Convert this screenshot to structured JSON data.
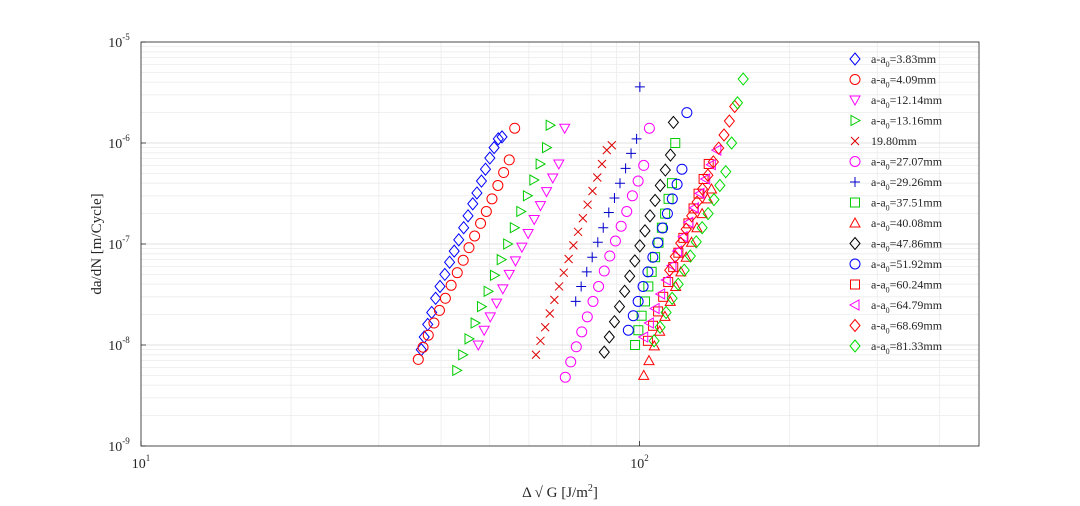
{
  "chart_data": {
    "type": "scatter",
    "title": "",
    "xlabel": {
      "prefix": "Δ √ G [J/m",
      "sup": "2",
      "suffix": "]"
    },
    "ylabel": "da/dN [m/Cycle]",
    "xscale": "log",
    "yscale": "log",
    "xlim": [
      10,
      480
    ],
    "ylim": [
      1e-09,
      1e-05
    ],
    "grid": true,
    "legend_position": "top-right",
    "x_ticks": [
      {
        "base": "10",
        "exp": "1",
        "value": 10
      },
      {
        "base": "10",
        "exp": "2",
        "value": 100
      }
    ],
    "y_ticks": [
      {
        "base": "10",
        "exp": "-9",
        "value": 1e-09
      },
      {
        "base": "10",
        "exp": "-8",
        "value": 1e-08
      },
      {
        "base": "10",
        "exp": "-7",
        "value": 1e-07
      },
      {
        "base": "10",
        "exp": "-6",
        "value": 1e-06
      },
      {
        "base": "10",
        "exp": "-5",
        "value": 1e-05
      }
    ],
    "series": [
      {
        "label_main": "a-a",
        "label_sub": "0",
        "label_rest": "=3.83mm",
        "color": "#0000ff",
        "marker": "diamond",
        "x": [
          36.5,
          37.0,
          37.6,
          38.3,
          39.0,
          39.8,
          40.7,
          41.6,
          42.5,
          43.4,
          44.4,
          45.3,
          46.3,
          47.2,
          48.2,
          49.1,
          50.1,
          51.1,
          52.1,
          53.0
        ],
        "y": [
          9e-09,
          1.2e-08,
          1.6e-08,
          2.1e-08,
          2.9e-08,
          3.8e-08,
          5e-08,
          6.6e-08,
          8.5e-08,
          1.1e-07,
          1.45e-07,
          1.9e-07,
          2.5e-07,
          3.2e-07,
          4.2e-07,
          5.5e-07,
          7.1e-07,
          9e-07,
          1.1e-06,
          1.15e-06
        ]
      },
      {
        "label_main": "a-a",
        "label_sub": "0",
        "label_rest": "=4.09mm",
        "color": "#ff0000",
        "marker": "circle",
        "x": [
          36.0,
          36.8,
          37.7,
          38.7,
          39.7,
          40.8,
          41.9,
          43.1,
          44.3,
          45.5,
          46.7,
          48.0,
          49.3,
          50.6,
          52.0,
          53.4,
          54.8,
          56.2
        ],
        "y": [
          7.2e-09,
          9.5e-09,
          1.25e-08,
          1.65e-08,
          2.2e-08,
          2.9e-08,
          3.9e-08,
          5.2e-08,
          6.9e-08,
          9.2e-08,
          1.2e-07,
          1.6e-07,
          2.1e-07,
          2.8e-07,
          3.8e-07,
          5.1e-07,
          6.8e-07,
          1.4e-06
        ]
      },
      {
        "label_main": "a-a",
        "label_sub": "0",
        "label_rest": "=12.14mm",
        "color": "#ff00ff",
        "marker": "triangle-down",
        "x": [
          47.5,
          48.8,
          50.2,
          51.7,
          53.2,
          54.8,
          56.4,
          58.1,
          59.8,
          61.5,
          63.3,
          65.1,
          67.0,
          68.9,
          70.8
        ],
        "y": [
          1e-08,
          1.4e-08,
          1.9e-08,
          2.6e-08,
          3.6e-08,
          5e-08,
          6.8e-08,
          9.3e-08,
          1.27e-07,
          1.75e-07,
          2.4e-07,
          3.3e-07,
          4.5e-07,
          6.2e-07,
          1.4e-06
        ]
      },
      {
        "label_main": "a-a",
        "label_sub": "0",
        "label_rest": "=13.16mm",
        "color": "#00cc00",
        "marker": "triangle-right",
        "x": [
          43.0,
          44.2,
          45.5,
          46.8,
          48.2,
          49.7,
          51.2,
          52.8,
          54.4,
          56.1,
          57.8,
          59.6,
          61.4,
          63.2,
          65.1,
          66.2
        ],
        "y": [
          5.6e-09,
          8e-09,
          1.15e-08,
          1.65e-08,
          2.4e-08,
          3.4e-08,
          4.9e-08,
          7e-08,
          1e-07,
          1.45e-07,
          2.1e-07,
          3e-07,
          4.3e-07,
          6.2e-07,
          9e-07,
          1.5e-06
        ]
      },
      {
        "label_main": "",
        "label_sub": "",
        "label_rest": "19.80mm",
        "color": "#dd0000",
        "marker": "x",
        "x": [
          62.0,
          63.3,
          64.7,
          66.1,
          67.5,
          69.0,
          70.5,
          72.1,
          73.7,
          75.3,
          77.0,
          78.7,
          80.5,
          82.3,
          84.1,
          86.0,
          88.0
        ],
        "y": [
          8e-09,
          1.1e-08,
          1.5e-08,
          2.05e-08,
          2.8e-08,
          3.8e-08,
          5.2e-08,
          7.1e-08,
          9.7e-08,
          1.32e-07,
          1.8e-07,
          2.45e-07,
          3.35e-07,
          4.55e-07,
          6.2e-07,
          8.5e-07,
          9.5e-07
        ]
      },
      {
        "label_main": "a-a",
        "label_sub": "0",
        "label_rest": "=27.07mm",
        "color": "#ff00ff",
        "marker": "circle",
        "x": [
          71.0,
          72.8,
          74.7,
          76.6,
          78.6,
          80.7,
          82.8,
          85.0,
          87.2,
          89.5,
          91.9,
          94.3,
          96.8,
          99.4,
          102.0,
          104.7
        ],
        "y": [
          4.8e-09,
          6.8e-09,
          9.6e-09,
          1.35e-08,
          1.9e-08,
          2.7e-08,
          3.8e-08,
          5.4e-08,
          7.6e-08,
          1.07e-07,
          1.5e-07,
          2.1e-07,
          3e-07,
          4.2e-07,
          6e-07,
          1.4e-06
        ]
      },
      {
        "label_main": "a-a",
        "label_sub": "0",
        "label_rest": "=29.26mm",
        "color": "#0000cc",
        "marker": "plus",
        "x": [
          74.5,
          76.4,
          78.4,
          80.4,
          82.5,
          84.6,
          86.8,
          89.1,
          91.4,
          93.8,
          96.2,
          98.7,
          100.2
        ],
        "y": [
          2.7e-08,
          3.8e-08,
          5.3e-08,
          7.4e-08,
          1.04e-07,
          1.45e-07,
          2.05e-07,
          2.85e-07,
          4e-07,
          5.6e-07,
          7.9e-07,
          1.1e-06,
          3.6e-06
        ]
      },
      {
        "label_main": "a-a",
        "label_sub": "0",
        "label_rest": "=37.51mm",
        "color": "#00cc00",
        "marker": "square",
        "x": [
          98.0,
          99.5,
          101.0,
          102.6,
          104.2,
          105.8,
          107.5,
          109.2,
          110.9,
          112.6,
          114.4,
          116.2,
          118.0
        ],
        "y": [
          1e-08,
          1.4e-08,
          1.95e-08,
          2.7e-08,
          3.8e-08,
          5.3e-08,
          7.4e-08,
          1.03e-07,
          1.45e-07,
          2e-07,
          2.8e-07,
          4e-07,
          1e-06
        ]
      },
      {
        "label_main": "a-a",
        "label_sub": "0",
        "label_rest": "=40.08mm",
        "color": "#ff0000",
        "marker": "triangle-up",
        "x": [
          102.0,
          104.5,
          107.1,
          109.8,
          112.5,
          115.3,
          118.2,
          121.1,
          124.1,
          127.2,
          130.4,
          133.6,
          136.9,
          139.5
        ],
        "y": [
          5e-09,
          7e-09,
          9.8e-09,
          1.37e-08,
          1.92e-08,
          2.7e-08,
          3.8e-08,
          5.3e-08,
          7.4e-08,
          1.04e-07,
          1.45e-07,
          2e-07,
          2.8e-07,
          3.5e-07
        ]
      },
      {
        "label_main": "a-a",
        "label_sub": "0",
        "label_rest": "=47.86mm",
        "color": "#000000",
        "marker": "diamond",
        "x": [
          85.0,
          87.0,
          89.1,
          91.2,
          93.4,
          95.6,
          97.9,
          100.2,
          102.6,
          105.0,
          107.5,
          110.1,
          112.7,
          115.4,
          117.0
        ],
        "y": [
          8.5e-09,
          1.2e-08,
          1.7e-08,
          2.4e-08,
          3.4e-08,
          4.8e-08,
          6.8e-08,
          9.6e-08,
          1.35e-07,
          1.9e-07,
          2.7e-07,
          3.8e-07,
          5.4e-07,
          7.6e-07,
          1.6e-06
        ]
      },
      {
        "label_main": "a-a",
        "label_sub": "0",
        "label_rest": "=51.92mm",
        "color": "#0000ff",
        "marker": "circle",
        "x": [
          95.0,
          97.2,
          99.4,
          101.7,
          104.0,
          106.4,
          108.8,
          111.3,
          113.8,
          116.4,
          119.0,
          121.7,
          124.5
        ],
        "y": [
          1.4e-08,
          1.95e-08,
          2.7e-08,
          3.8e-08,
          5.3e-08,
          7.4e-08,
          1.03e-07,
          1.44e-07,
          2e-07,
          2.8e-07,
          3.9e-07,
          5.5e-07,
          2e-06
        ]
      },
      {
        "label_main": "a-a",
        "label_sub": "0",
        "label_rest": "=60.24mm",
        "color": "#ff0000",
        "marker": "square",
        "x": [
          104.0,
          106.5,
          109.0,
          111.6,
          114.2,
          116.9,
          119.7,
          122.5,
          125.4,
          128.4,
          131.4,
          134.5,
          137.7
        ],
        "y": [
          1.1e-08,
          1.55e-08,
          2.15e-08,
          3e-08,
          4.2e-08,
          5.9e-08,
          8.2e-08,
          1.15e-07,
          1.6e-07,
          2.25e-07,
          3.15e-07,
          4.4e-07,
          6.2e-07
        ]
      },
      {
        "label_main": "a-a",
        "label_sub": "0",
        "label_rest": "=64.79mm",
        "color": "#ff00ff",
        "marker": "triangle-left",
        "x": [
          102.0,
          104.7,
          107.5,
          110.3,
          113.2,
          116.2,
          119.3,
          122.4,
          125.6,
          128.9,
          132.3,
          135.8,
          139.4,
          143.0
        ],
        "y": [
          1.2e-08,
          1.65e-08,
          2.3e-08,
          3.2e-08,
          4.4e-08,
          6.1e-08,
          8.5e-08,
          1.18e-07,
          1.64e-07,
          2.28e-07,
          3.17e-07,
          4.4e-07,
          6.1e-07,
          8.5e-07
        ]
      },
      {
        "label_main": "a-a",
        "label_sub": "0",
        "label_rest": "=68.69mm",
        "color": "#ff0000",
        "marker": "diamond",
        "x": [
          115.0,
          118.0,
          121.0,
          124.1,
          127.3,
          130.5,
          133.8,
          137.2,
          140.7,
          144.2,
          147.8,
          151.5,
          155.3
        ],
        "y": [
          5.5e-08,
          7.5e-08,
          1.02e-07,
          1.4e-07,
          1.9e-07,
          2.6e-07,
          3.5e-07,
          4.8e-07,
          6.5e-07,
          8.9e-07,
          1.2e-06,
          1.65e-06,
          2.3e-06
        ]
      },
      {
        "label_main": "a-a",
        "label_sub": "0",
        "label_rest": "=81.33mm",
        "color": "#00dd00",
        "marker": "diamond",
        "x": [
          107.0,
          110.0,
          113.1,
          116.3,
          119.6,
          123.0,
          126.5,
          130.0,
          133.6,
          137.3,
          141.1,
          145.0,
          149.0,
          153.1,
          157.3,
          161.5
        ],
        "y": [
          1.1e-08,
          1.5e-08,
          2.1e-08,
          2.9e-08,
          4e-08,
          5.5e-08,
          7.6e-08,
          1.05e-07,
          1.45e-07,
          2e-07,
          2.75e-07,
          3.8e-07,
          5.2e-07,
          1e-06,
          2.5e-06,
          4.3e-06
        ]
      }
    ]
  }
}
